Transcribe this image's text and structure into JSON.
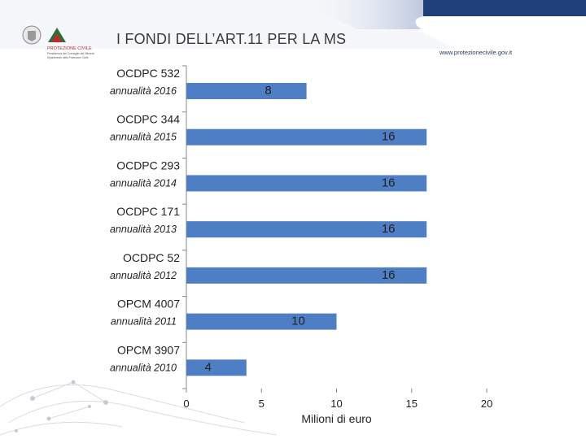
{
  "header": {
    "title": "I FONDI DELL’ART.11 PER LA MS",
    "url": "www.protezionecivile.gov.it",
    "logo_text_1": "PROTEZIONE CIVILE",
    "logo_text_2": "Presidenza del Consiglio dei Ministri",
    "logo_text_3": "Dipartimento della Protezione Civile"
  },
  "colors": {
    "bar": "#4e7ec4",
    "header_band": "#1f3f78",
    "text": "#222222"
  },
  "chart_data": {
    "type": "bar",
    "orientation": "horizontal",
    "categories": [
      {
        "name": "OCDPC 532",
        "year": "annualità 2016"
      },
      {
        "name": "OCDPC 344",
        "year": "annualità 2015"
      },
      {
        "name": "OCDPC 293",
        "year": "annualità 2014"
      },
      {
        "name": "OCDPC 171",
        "year": "annualità 2013"
      },
      {
        "name": "OCDPC 52",
        "year": "annualità 2012"
      },
      {
        "name": "OPCM 4007",
        "year": "annualità 2011"
      },
      {
        "name": "OPCM 3907",
        "year": "annualità 2010"
      }
    ],
    "values": [
      8,
      16,
      16,
      16,
      16,
      10,
      4
    ],
    "xlabel": "Milioni di euro",
    "xlim": [
      0,
      20
    ],
    "xticks": [
      0,
      5,
      10,
      15,
      20
    ],
    "grid": false,
    "legend": "none"
  }
}
